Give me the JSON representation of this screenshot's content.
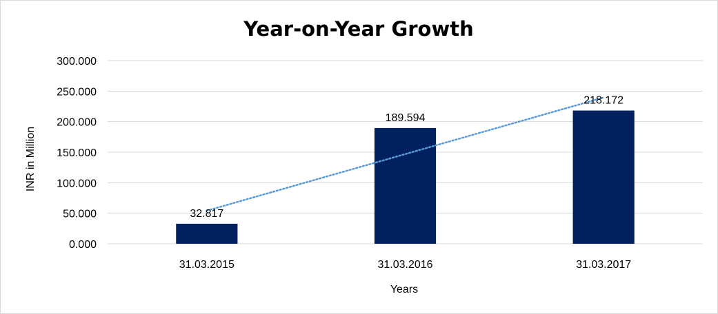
{
  "chart_data": {
    "type": "bar",
    "title": "Year-on-Year Growth",
    "xlabel": "Years",
    "ylabel": "INR in Million",
    "categories": [
      "31.03.2015",
      "31.03.2016",
      "31.03.2017"
    ],
    "values": [
      32.817,
      189.594,
      218.172
    ],
    "value_labels": [
      "32.817",
      "189.594",
      "218.172"
    ],
    "ylim": [
      0,
      300
    ],
    "yticks": [
      0,
      50,
      100,
      150,
      200,
      250,
      300
    ],
    "ytick_labels": [
      "0.000",
      "50.000",
      "100.000",
      "150.000",
      "200.000",
      "250.000",
      "300.000"
    ],
    "grid": true,
    "legend": "none",
    "trendline": {
      "type": "linear",
      "style": "dotted"
    },
    "colors": {
      "bar": "#002060",
      "trendline": "#5b9bd5",
      "grid": "#d9d9d9"
    }
  }
}
